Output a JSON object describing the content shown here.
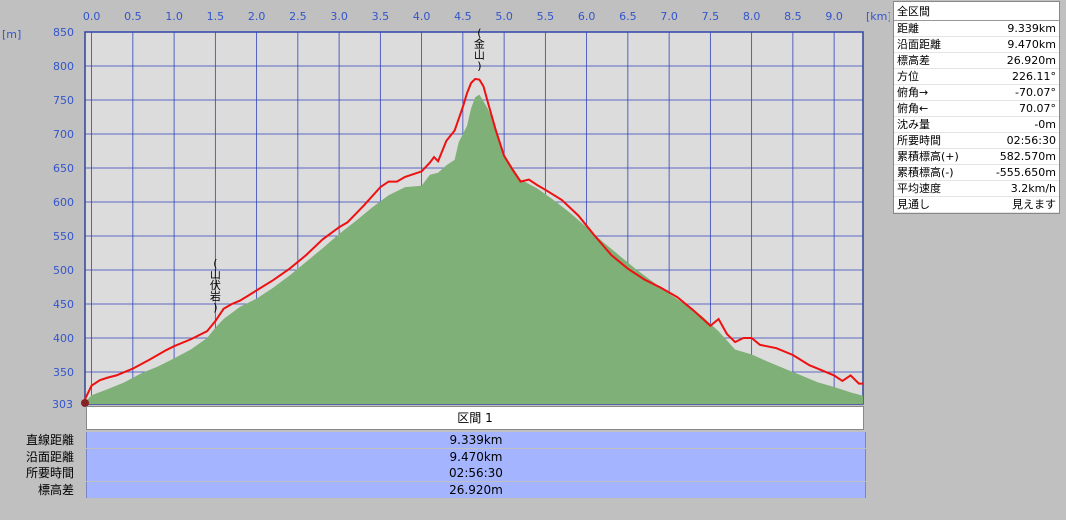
{
  "chart_data": {
    "type": "area",
    "x_unit": "[km]",
    "y_unit": "[m]",
    "x_ticks": [
      0.0,
      0.5,
      1.0,
      1.5,
      2.0,
      2.5,
      3.0,
      3.5,
      4.0,
      4.5,
      5.0,
      5.5,
      6.0,
      6.5,
      7.0,
      7.5,
      8.0,
      8.5,
      9.0
    ],
    "x_tick_labels": [
      "0.0",
      "0.5",
      "1.0",
      "1.5",
      "2.0",
      "2.5",
      "3.0",
      "3.5",
      "4.0",
      "4.5",
      "5.0",
      "5.5",
      "6.0",
      "6.5",
      "7.0",
      "7.5",
      "8.0",
      "8.5",
      "9.0"
    ],
    "y_ticks": [
      350,
      400,
      450,
      500,
      550,
      600,
      650,
      700,
      750,
      800,
      850
    ],
    "y_tick_labels": [
      "350",
      "400",
      "450",
      "500",
      "550",
      "600",
      "650",
      "700",
      "750",
      "800",
      "850"
    ],
    "y_min_label": "303",
    "xlim": [
      -0.08,
      9.35
    ],
    "ylim": [
      303,
      850
    ],
    "grid": true,
    "series": [
      {
        "color": "#ee1111",
        "x": [
          -0.08,
          0.0,
          0.1,
          0.2,
          0.3,
          0.5,
          0.7,
          0.9,
          1.0,
          1.2,
          1.4,
          1.5,
          1.6,
          1.7,
          1.8,
          2.0,
          2.2,
          2.4,
          2.6,
          2.8,
          3.0,
          3.1,
          3.3,
          3.5,
          3.6,
          3.7,
          3.8,
          4.0,
          4.1,
          4.15,
          4.2,
          4.3,
          4.4,
          4.5,
          4.55,
          4.6,
          4.65,
          4.7,
          4.75,
          4.8,
          4.9,
          5.0,
          5.1,
          5.2,
          5.3,
          5.4,
          5.5,
          5.7,
          5.9,
          6.1,
          6.3,
          6.5,
          6.7,
          6.9,
          7.1,
          7.3,
          7.5,
          7.6,
          7.7,
          7.8,
          7.9,
          8.0,
          8.1,
          8.3,
          8.5,
          8.7,
          8.8,
          9.0,
          9.1,
          9.2,
          9.3,
          9.35
        ],
        "values": [
          310,
          330,
          338,
          342,
          345,
          355,
          368,
          382,
          388,
          398,
          410,
          425,
          443,
          450,
          455,
          470,
          485,
          502,
          522,
          545,
          563,
          570,
          595,
          622,
          630,
          630,
          637,
          645,
          658,
          666,
          660,
          690,
          705,
          740,
          760,
          775,
          781,
          780,
          770,
          748,
          705,
          668,
          648,
          630,
          633,
          625,
          618,
          603,
          580,
          550,
          522,
          502,
          486,
          474,
          460,
          440,
          418,
          428,
          406,
          394,
          400,
          400,
          390,
          385,
          375,
          360,
          355,
          345,
          337,
          345,
          333,
          333
        ]
      },
      {
        "color": "#7fb077",
        "x": [
          -0.08,
          0.0,
          0.2,
          0.4,
          0.6,
          0.8,
          1.0,
          1.2,
          1.4,
          1.5,
          1.6,
          1.8,
          2.0,
          2.2,
          2.4,
          2.6,
          2.8,
          3.0,
          3.2,
          3.4,
          3.6,
          3.8,
          4.0,
          4.1,
          4.2,
          4.3,
          4.4,
          4.45,
          4.5,
          4.55,
          4.6,
          4.65,
          4.7,
          4.8,
          4.9,
          5.0,
          5.2,
          5.4,
          5.6,
          5.8,
          6.0,
          6.2,
          6.4,
          6.6,
          6.8,
          7.0,
          7.2,
          7.4,
          7.6,
          7.8,
          8.0,
          8.2,
          8.4,
          8.6,
          8.8,
          9.0,
          9.2,
          9.35
        ],
        "values": [
          306,
          316,
          325,
          335,
          348,
          358,
          370,
          383,
          400,
          415,
          428,
          446,
          458,
          474,
          492,
          512,
          532,
          553,
          572,
          592,
          610,
          622,
          624,
          640,
          643,
          654,
          662,
          688,
          700,
          712,
          738,
          754,
          758,
          738,
          710,
          670,
          633,
          620,
          603,
          584,
          563,
          541,
          521,
          501,
          483,
          465,
          449,
          432,
          410,
          383,
          376,
          365,
          355,
          345,
          335,
          328,
          320,
          315
        ]
      }
    ],
    "annotations": [
      {
        "text": "(金山)",
        "x": 4.7
      },
      {
        "text": "(山伏岩)",
        "x": 1.5
      }
    ]
  },
  "stats_panel": {
    "title": "全区間",
    "rows": [
      {
        "label": "距離",
        "value": "9.339km"
      },
      {
        "label": "沿面距離",
        "value": "9.470km"
      },
      {
        "label": "標高差",
        "value": "26.920m"
      },
      {
        "label": "方位",
        "value": "226.11°"
      },
      {
        "label": "俯角→",
        "value": "-70.07°"
      },
      {
        "label": "俯角←",
        "value": "70.07°"
      },
      {
        "label": "沈み量",
        "value": "-0m"
      },
      {
        "label": "所要時間",
        "value": "02:56:30"
      },
      {
        "label": "累積標高(+)",
        "value": "582.570m"
      },
      {
        "label": "累積標高(-)",
        "value": "-555.650m"
      },
      {
        "label": "平均速度",
        "value": "3.2km/h"
      },
      {
        "label": "見通し",
        "value": "見えます"
      }
    ]
  },
  "section_table": {
    "header": "区間 1",
    "rows": [
      {
        "label": "直線距離",
        "value": "9.339km"
      },
      {
        "label": "沿面距離",
        "value": "9.470km"
      },
      {
        "label": "所要時間",
        "value": "02:56:30"
      },
      {
        "label": "標高差",
        "value": "26.920m"
      }
    ]
  }
}
